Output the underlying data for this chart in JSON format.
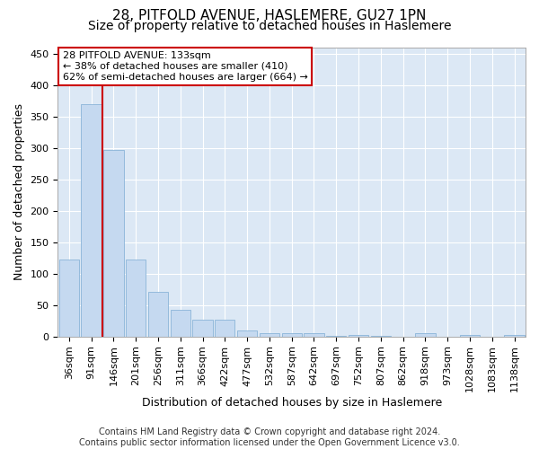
{
  "title1": "28, PITFOLD AVENUE, HASLEMERE, GU27 1PN",
  "title2": "Size of property relative to detached houses in Haslemere",
  "xlabel": "Distribution of detached houses by size in Haslemere",
  "ylabel": "Number of detached properties",
  "categories": [
    "36sqm",
    "91sqm",
    "146sqm",
    "201sqm",
    "256sqm",
    "311sqm",
    "366sqm",
    "422sqm",
    "477sqm",
    "532sqm",
    "587sqm",
    "642sqm",
    "697sqm",
    "752sqm",
    "807sqm",
    "862sqm",
    "918sqm",
    "973sqm",
    "1028sqm",
    "1083sqm",
    "1138sqm"
  ],
  "values": [
    122,
    370,
    297,
    122,
    71,
    42,
    27,
    27,
    10,
    6,
    5,
    5,
    1,
    3,
    1,
    0,
    5,
    0,
    2,
    0,
    2
  ],
  "bar_color": "#c5d9f0",
  "bar_edge_color": "#8ab4d8",
  "vline_color": "#cc0000",
  "annotation_title": "28 PITFOLD AVENUE: 133sqm",
  "annotation_line1": "← 38% of detached houses are smaller (410)",
  "annotation_line2": "62% of semi-detached houses are larger (664) →",
  "annotation_box_color": "#ffffff",
  "annotation_box_edge": "#cc0000",
  "footer": "Contains HM Land Registry data © Crown copyright and database right 2024.\nContains public sector information licensed under the Open Government Licence v3.0.",
  "ylim": [
    0,
    460
  ],
  "yticks": [
    0,
    50,
    100,
    150,
    200,
    250,
    300,
    350,
    400,
    450
  ],
  "background_color": "#dce8f5",
  "grid_color": "#ffffff",
  "fig_background": "#ffffff",
  "title1_fontsize": 11,
  "title2_fontsize": 10,
  "axis_label_fontsize": 9,
  "tick_fontsize": 8,
  "annotation_fontsize": 8,
  "footer_fontsize": 7
}
